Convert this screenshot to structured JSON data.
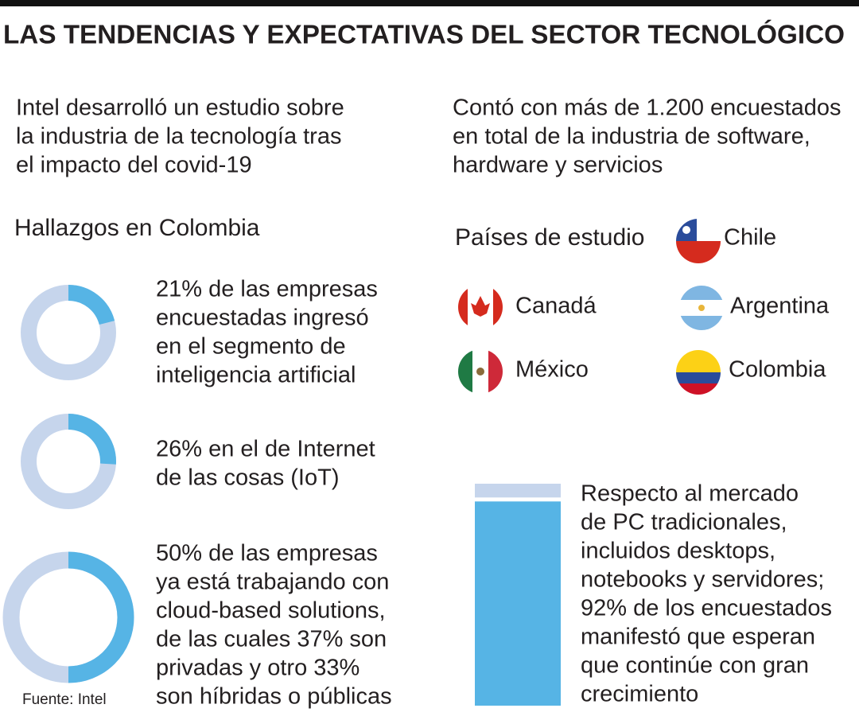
{
  "header": {
    "title": "LAS TENDENCIAS Y EXPECTATIVAS DEL SECTOR TECNOLÓGICO"
  },
  "intro": {
    "left": [
      "Intel desarrolló un estudio sobre",
      "la industria de la tecnología tras",
      "el impacto del covid-19"
    ],
    "right": [
      "Contó con más de 1.200 encuestados",
      "en total de la industria de software,",
      "hardware y servicios"
    ]
  },
  "findings": {
    "title": "Hallazgos en Colombia",
    "items": [
      {
        "lines": [
          "21% de las empresas",
          "encuestadas ingresó",
          "en el segmento de",
          "inteligencia artificial"
        ],
        "value": 21
      },
      {
        "lines": [
          "26% en el de Internet",
          "de las cosas (IoT)"
        ],
        "value": 26
      },
      {
        "lines": [
          "50%  de las empresas",
          "ya está trabajando con",
          "cloud-based solutions,",
          "de las cuales 37% son",
          "privadas y otro 33%",
          "son híbridas o públicas"
        ],
        "value": 50
      }
    ],
    "source": "Fuente: Intel"
  },
  "countries": {
    "title": "Países de estudio",
    "items": [
      "Chile",
      "Canadá",
      "Argentina",
      "México",
      "Colombia"
    ]
  },
  "market": {
    "lines": [
      "Respecto al mercado",
      "de PC tradicionales,",
      "incluidos desktops,",
      "notebooks y servidores;",
      "92% de los encuestados",
      "manifestó que esperan",
      "que continúe con gran",
      "crecimiento"
    ],
    "value": 92
  }
}
